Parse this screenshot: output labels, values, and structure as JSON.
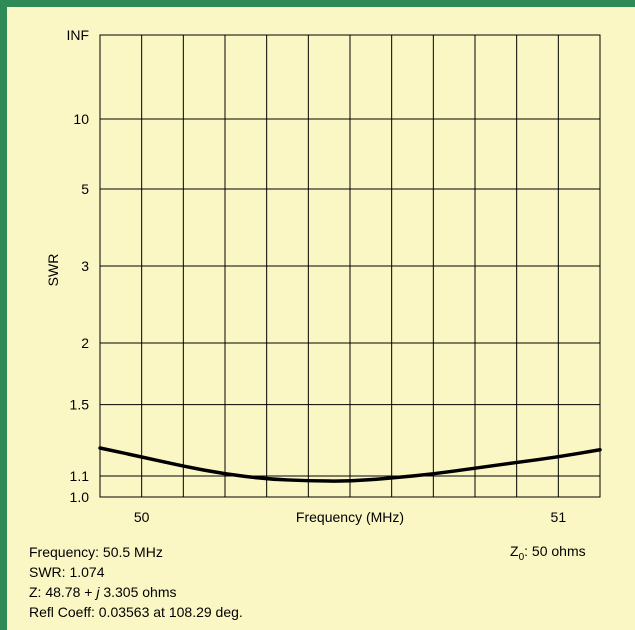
{
  "chart_data": {
    "type": "line",
    "ylabel": "SWR",
    "xlabel": "Frequency (MHz)",
    "xlim": [
      49.9,
      51.1
    ],
    "ylim": [
      1.0,
      "INF"
    ],
    "y_scale": "reflection-coefficient (SWR)",
    "x_tick_labels": [
      "50",
      "51"
    ],
    "y_ticks": [
      {
        "label": "INF"
      },
      {
        "label": "10"
      },
      {
        "label": "5"
      },
      {
        "label": "3"
      },
      {
        "label": "2"
      },
      {
        "label": "1.5"
      },
      {
        "label": "1.1"
      },
      {
        "label": "1.0"
      }
    ],
    "grid": true,
    "series": [
      {
        "x": [
          49.9,
          50.0,
          50.1,
          50.2,
          50.3,
          50.4,
          50.5,
          50.6,
          50.7,
          50.8,
          50.9,
          51.0,
          51.1
        ],
        "y": [
          1.25,
          1.2,
          1.15,
          1.11,
          1.085,
          1.076,
          1.074,
          1.09,
          1.11,
          1.14,
          1.17,
          1.2,
          1.24
        ]
      }
    ]
  },
  "readout": {
    "frequency": "Frequency: 50.5 MHz",
    "swr": "SWR: 1.074",
    "z_prefix": "Z: 48.78 + ",
    "z_j": "j",
    "z_suffix": " 3.305 ohms",
    "refl": "Refl Coeff: 0.03563 at 108.29 deg.",
    "z0_label": "Z",
    "z0_sub": "0",
    "z0_value": ": 50 ohms"
  },
  "colors": {
    "frame": "#2e8b57",
    "background": "#fbf7c4",
    "line": "#000000"
  }
}
